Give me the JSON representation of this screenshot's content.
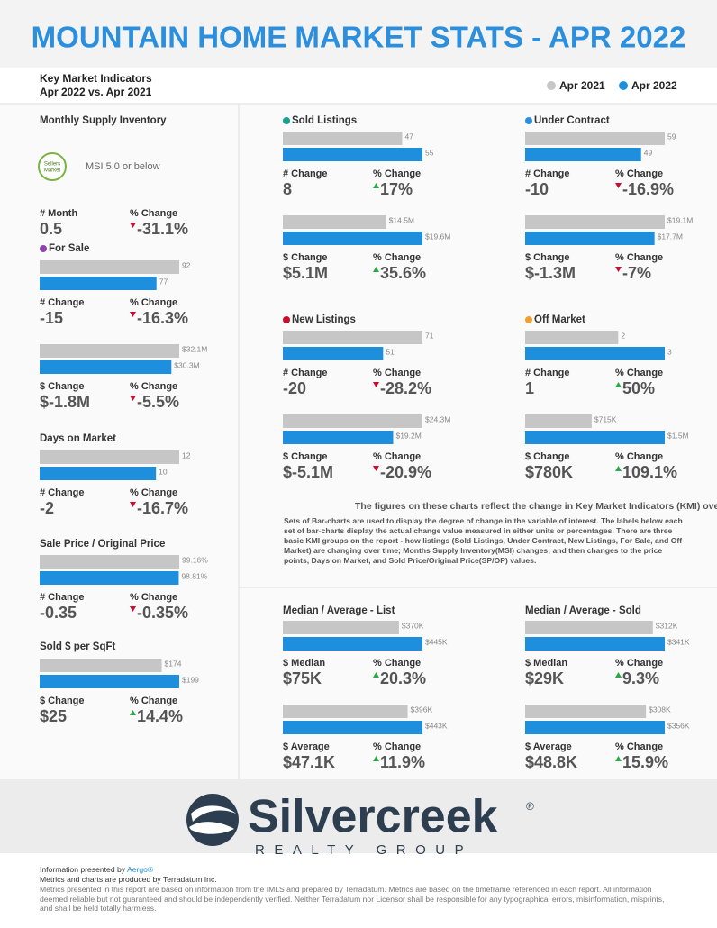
{
  "header": {
    "title": "MOUNTAIN HOME MARKET STATS - APR 2022",
    "subtitle": [
      "Key Market Indicators",
      "Apr 2022 vs. Apr 2021"
    ]
  },
  "legend": [
    {
      "name": "Apr 2021",
      "color": "#c6c6c6"
    },
    {
      "name": "Apr 2022",
      "color": "#1e8fdc"
    }
  ],
  "panels": [
    {
      "title": "Monthly Supply Inventory",
      "badge": [
        "Sellers",
        "Market"
      ],
      "note": "MSI 5.0 or below",
      "groups": [
        {
          "change_label": "# Month",
          "change": "0.5",
          "pct_label": "% Change",
          "pct": "-31.1%"
        }
      ]
    },
    {
      "title": "For Sale",
      "dot": "#8e44ad",
      "groups": [
        {
          "values": [
            92,
            77
          ],
          "change_label": "# Change",
          "change": "-15",
          "pct_label": "% Change",
          "pct": "-16.3%"
        },
        {
          "values": [
            32100000,
            30300000
          ],
          "value_labels": [
            "$32.1M",
            "$30.3M"
          ],
          "change_label": "$ Change",
          "change": "$-1.8M",
          "pct_label": "% Change",
          "pct": "-5.5%"
        }
      ]
    },
    {
      "title": "Days on Market",
      "groups": [
        {
          "values": [
            12,
            10
          ],
          "change_label": "# Change",
          "change": "-2",
          "pct_label": "% Change",
          "pct": "-16.7%"
        }
      ]
    },
    {
      "title": "Sale Price / Original Price",
      "groups": [
        {
          "values": [
            99.16,
            98.81
          ],
          "value_labels": [
            "99.16%",
            "98.81%"
          ],
          "change_label": "# Change",
          "change": "-0.35",
          "pct_label": "% Change",
          "pct": "-0.35%"
        }
      ]
    },
    {
      "title": "Sold $ per SqFt",
      "groups": [
        {
          "values": [
            174,
            199
          ],
          "value_labels": [
            "$174",
            "$199"
          ],
          "change_label": "$ Change",
          "change": "$25",
          "pct_label": "% Change",
          "pct": "14.4%"
        }
      ]
    },
    {
      "title": "Sold Listings",
      "dot": "#1a9e8f",
      "groups": [
        {
          "values": [
            47,
            55
          ],
          "change_label": "# Change",
          "change": "8",
          "pct_label": "% Change",
          "pct": "17%"
        },
        {
          "values": [
            14500000,
            19600000
          ],
          "value_labels": [
            "$14.5M",
            "$19.6M"
          ],
          "change_label": "$ Change",
          "change": "$5.1M",
          "pct_label": "% Change",
          "pct": "35.6%"
        }
      ]
    },
    {
      "title": "New Listings",
      "dot": "#c8102e",
      "groups": [
        {
          "values": [
            71,
            51
          ],
          "change_label": "# Change",
          "change": "-20",
          "pct_label": "% Change",
          "pct": "-28.2%"
        },
        {
          "values": [
            24300000,
            19200000
          ],
          "value_labels": [
            "$24.3M",
            "$19.2M"
          ],
          "change_label": "$ Change",
          "change": "$-5.1M",
          "pct_label": "% Change",
          "pct": "-20.9%"
        }
      ]
    },
    {
      "title": "Median / Average - List",
      "groups": [
        {
          "values": [
            370000,
            445000
          ],
          "value_labels": [
            "$370K",
            "$445K"
          ],
          "change_label": "$ Median",
          "change": "$75K",
          "pct_label": "% Change",
          "pct": "20.3%"
        },
        {
          "values": [
            396000,
            443000
          ],
          "value_labels": [
            "$396K",
            "$443K"
          ],
          "change_label": "$ Average",
          "change": "$47.1K",
          "pct_label": "% Change",
          "pct": "11.9%"
        }
      ]
    },
    {
      "title": "Under Contract",
      "dot": "#2b8fdd",
      "groups": [
        {
          "values": [
            59,
            49
          ],
          "change_label": "# Change",
          "change": "-10",
          "pct_label": "% Change",
          "pct": "-16.9%"
        },
        {
          "values": [
            19100000,
            17700000
          ],
          "value_labels": [
            "$19.1M",
            "$17.7M"
          ],
          "change_label": "$ Change",
          "change": "$-1.3M",
          "pct_label": "% Change",
          "pct": "-7%"
        }
      ]
    },
    {
      "title": "Off Market",
      "dot": "#f0a030",
      "groups": [
        {
          "values": [
            2,
            3
          ],
          "change_label": "# Change",
          "change": "1",
          "pct_label": "% Change",
          "pct": "50%"
        },
        {
          "values": [
            715000,
            1500000
          ],
          "value_labels": [
            "$715K",
            "$1.5M"
          ],
          "change_label": "$ Change",
          "change": "$780K",
          "pct_label": "% Change",
          "pct": "109.1%"
        }
      ]
    },
    {
      "title": "Median / Average - Sold",
      "groups": [
        {
          "values": [
            312000,
            341000
          ],
          "value_labels": [
            "$312K",
            "$341K"
          ],
          "change_label": "$ Median",
          "change": "$29K",
          "pct_label": "% Change",
          "pct": "9.3%"
        },
        {
          "values": [
            308000,
            356000
          ],
          "value_labels": [
            "$308K",
            "$356K"
          ],
          "change_label": "$ Average",
          "change": "$48.8K",
          "pct_label": "% Change",
          "pct": "15.9%"
        }
      ]
    }
  ],
  "description": {
    "heading": "The figures on these charts reflect the change in Key Market Indicators (KMI) over time.",
    "body": "Sets of Bar-charts are used to display the degree of change in the variable of interest. The labels below each set of bar-charts display the actual change value measured in either units or percentages. There are three basic KMI groups on the report - how listings (Sold Listings, Under Contract, New Listings, For Sale, and Off Market) are changing over time; Months Supply Inventory(MSI) changes; and then changes to the price points, Days on Market, and Sold Price/Original Price(SP/OP) values."
  },
  "logo": {
    "name": "Silvercreek",
    "mark": "®",
    "tagline": "REALTY GROUP"
  },
  "footer": {
    "presented_by": "Information presented by",
    "presenter": "Aergo®",
    "produced": "Metrics and charts are produced by Terradatum Inc.",
    "disclaimer": "Metrics presented in this report are based on information from the IMLS and prepared by Terradatum. Metrics are based on the timeframe referenced in each report. All information deemed reliable but not guaranteed and should be independently verified. Neither Terradatum nor Licensor shall be responsible for any typographical errors, misinformation, misprints, and shall be held totally harmless."
  }
}
